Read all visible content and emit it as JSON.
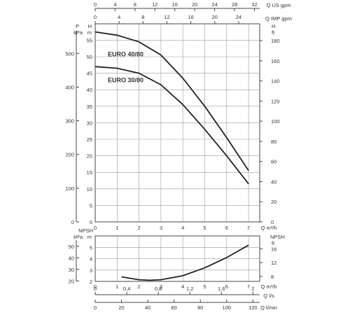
{
  "chart_data": [
    {
      "type": "line",
      "panel": "head",
      "x_axis": {
        "label": "Q m³/h",
        "range": [
          0,
          7.5
        ],
        "ticks": [
          0,
          1,
          2,
          3,
          4,
          5,
          6,
          7
        ]
      },
      "top_axes": [
        {
          "label": "Q US gpm",
          "ticks": [
            0,
            4,
            8,
            12,
            16,
            20,
            24,
            28,
            32
          ]
        },
        {
          "label": "Q IMP gpm",
          "ticks": [
            0,
            4,
            8,
            12,
            16,
            20,
            24
          ]
        }
      ],
      "y_axis_m": {
        "label_top": "H",
        "label_unit": "m",
        "range": [
          0,
          60
        ],
        "ticks": [
          0,
          5,
          10,
          15,
          20,
          25,
          30,
          35,
          40,
          45,
          50,
          55
        ]
      },
      "y_axis_kpa": {
        "label_top": "P",
        "label_unit": "kPa",
        "ticks": [
          0,
          100,
          200,
          300,
          400,
          500
        ]
      },
      "y_axis_ft": {
        "label_top": "H",
        "label_unit": "ft",
        "ticks": [
          0,
          20,
          40,
          60,
          80,
          100,
          120,
          140,
          160,
          180
        ]
      },
      "series": [
        {
          "name": "EURO 40/80",
          "x": [
            0,
            1,
            2,
            3,
            4,
            5,
            6,
            7
          ],
          "y": [
            57.5,
            56.5,
            54.5,
            50.5,
            43.5,
            35,
            25.5,
            15.5
          ]
        },
        {
          "name": "EURO 30/80",
          "x": [
            0,
            1,
            2,
            3,
            4,
            5,
            6,
            7
          ],
          "y": [
            47,
            46.5,
            45,
            41.5,
            35.5,
            28,
            20,
            11.5
          ]
        }
      ],
      "grid": true
    },
    {
      "type": "line",
      "panel": "npsh",
      "x_axis": {
        "label": "Q m³/h",
        "range": [
          0,
          7.5
        ],
        "ticks": [
          0,
          1,
          2,
          3,
          4,
          5,
          6,
          7
        ]
      },
      "bottom_axes": [
        {
          "label": "Q l/s",
          "ticks": [
            "0",
            "0,4",
            "0,8",
            "1,2",
            "1,6",
            "2"
          ]
        },
        {
          "label": "Q l/min",
          "ticks": [
            0,
            20,
            40,
            60,
            80,
            100,
            120
          ]
        }
      ],
      "y_axis_m": {
        "label_top": "NPSH",
        "label_unit": "m",
        "range": [
          2,
          5.5
        ],
        "ticks": [
          2,
          3,
          4,
          5
        ]
      },
      "y_axis_kpa": {
        "label_unit": "kPa",
        "ticks": [
          20,
          30,
          40,
          50
        ]
      },
      "y_axis_ft": {
        "label_top": "NPSH",
        "label_unit": "ft",
        "ticks": [
          8,
          12,
          16
        ]
      },
      "series": [
        {
          "x": [
            1.2,
            2,
            2.5,
            3,
            4,
            5,
            6,
            7
          ],
          "y": [
            2.4,
            2.15,
            2.1,
            2.15,
            2.5,
            3.2,
            4.1,
            5.2
          ]
        }
      ],
      "grid": true
    }
  ]
}
